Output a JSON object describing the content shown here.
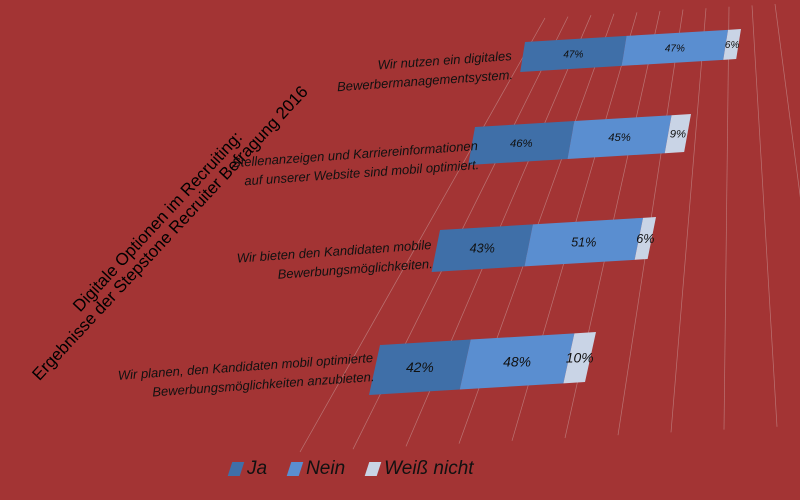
{
  "title": {
    "line1": "Digitale Optionen im Recruiting:",
    "line2": "Ergebnisse der Stepstone Recruiter Befragung 2016"
  },
  "colors": {
    "background": "#a33434",
    "ja": "#3f6fa8",
    "nein": "#5a8ed0",
    "weiss_nicht": "#c9d4e6",
    "gridline": "#cfa8a8"
  },
  "chart_data": {
    "type": "bar",
    "orientation": "horizontal",
    "stacked": true,
    "percent": true,
    "categories": [
      "Wir nutzen ein digitales Bewerbermanagementsystem.",
      "Stellenanzeigen und Karriereinformationen auf unserer Website sind mobil optimiert.",
      "Wir bieten den Kandidaten mobile Bewerbungsmöglichkeiten.",
      "Wir planen, den Kandidaten mobil optimierte Bewerbungsmöglichkeiten anzubieten."
    ],
    "category_lines": [
      [
        "Wir nutzen ein digitales",
        "Bewerbermanagementsystem."
      ],
      [
        "Stellenanzeigen und Karriereinformationen",
        "auf unserer Website sind mobil optimiert."
      ],
      [
        "Wir bieten den Kandidaten mobile",
        "Bewerbungsmöglichkeiten."
      ],
      [
        "Wir planen, den Kandidaten mobil optimierte",
        "Bewerbungsmöglichkeiten anzubieten."
      ]
    ],
    "series": [
      {
        "name": "Ja",
        "values": [
          47,
          46,
          43,
          42
        ],
        "labels": [
          "47%",
          "46%",
          "43%",
          "42%"
        ]
      },
      {
        "name": "Nein",
        "values": [
          47,
          45,
          51,
          48
        ],
        "labels": [
          "47%",
          "45%",
          "51%",
          "48%"
        ]
      },
      {
        "name": "Weiß nicht",
        "values": [
          6,
          9,
          6,
          10
        ],
        "labels": [
          "6%",
          "9%",
          "6%",
          "10%"
        ]
      }
    ],
    "xlim": [
      0,
      100
    ],
    "grid": true,
    "legend_position": "bottom"
  }
}
